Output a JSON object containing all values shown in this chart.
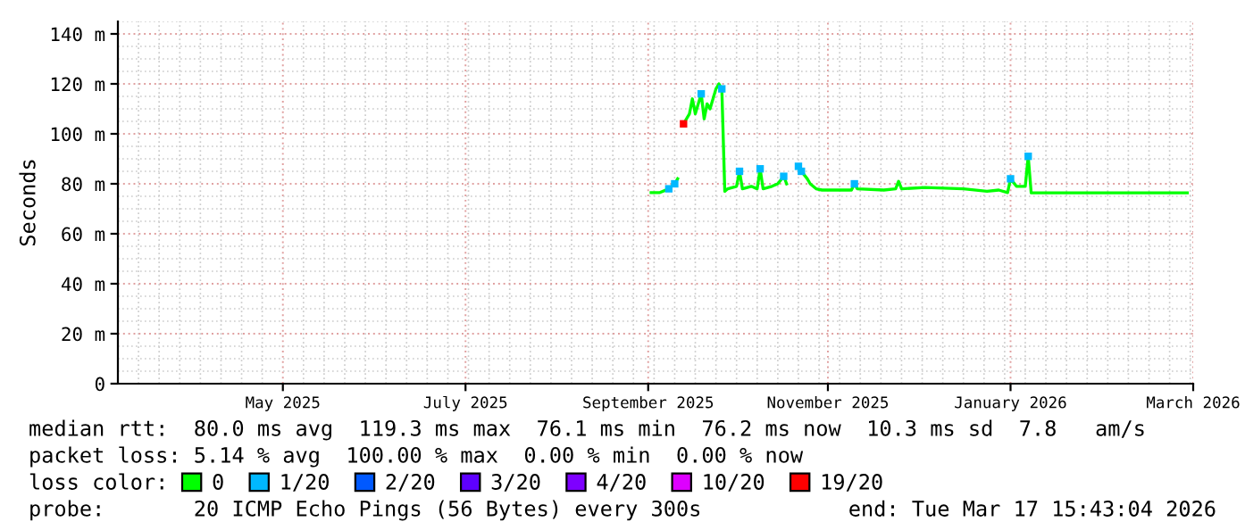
{
  "chart_data": {
    "type": "line",
    "ylabel": "Seconds",
    "legend_title": "loss color:",
    "legend": "bottom",
    "grid": true,
    "x": [
      "2025-09-14",
      "2025-09-17",
      "2025-09-20",
      "2025-09-22",
      "2025-09-23",
      "2025-09-24",
      "2025-09-25",
      "2025-09-27",
      "2025-09-28",
      "2025-09-29",
      "2025-10-01",
      "2025-10-02",
      "2025-10-03",
      "2025-10-04",
      "2025-10-06",
      "2025-10-07",
      "2025-10-08",
      "2025-10-09",
      "2025-10-10",
      "2025-10-13",
      "2025-10-14",
      "2025-10-15",
      "2025-10-18",
      "2025-10-20",
      "2025-10-21",
      "2025-10-22",
      "2025-10-25",
      "2025-10-27",
      "2025-10-29",
      "2025-10-30",
      "2025-11-01",
      "2025-11-03",
      "2025-11-04",
      "2025-11-06",
      "2025-11-07",
      "2025-11-09",
      "2025-11-11",
      "2025-11-17",
      "2025-11-21",
      "2025-11-22",
      "2025-11-23",
      "2025-12-02",
      "2025-12-06",
      "2025-12-07",
      "2025-12-08",
      "2025-12-16",
      "2025-12-29",
      "2026-01-06",
      "2026-01-10",
      "2026-01-13",
      "2026-01-14",
      "2026-01-16",
      "2026-01-19",
      "2026-01-20",
      "2026-01-21",
      "2026-02-04",
      "2026-02-22",
      "2026-03-15"
    ],
    "series": [
      {
        "name": "0",
        "color": "#00ff00",
        "values": [
          76.5,
          76.5,
          78,
          80,
          82,
          null,
          104,
          108,
          114,
          108,
          116,
          106,
          112,
          110,
          118,
          120,
          118,
          77,
          78,
          79,
          85,
          78,
          79,
          78,
          86,
          78,
          79,
          80,
          83,
          80,
          null,
          87,
          85,
          82,
          80,
          78,
          77.5,
          77.5,
          77.5,
          80,
          78,
          77.5,
          78,
          81,
          78,
          78.5,
          78,
          77,
          77.5,
          76.5,
          82,
          79,
          79,
          91,
          76.4,
          76.4,
          76.4,
          76.4
        ]
      },
      {
        "name": "1/20",
        "color": "#00b8ff",
        "type": "scatter",
        "values": [
          null,
          null,
          78,
          80,
          null,
          null,
          null,
          null,
          null,
          null,
          116,
          null,
          null,
          null,
          null,
          null,
          118,
          null,
          null,
          null,
          85,
          null,
          null,
          null,
          86,
          null,
          null,
          null,
          83,
          null,
          null,
          87,
          85,
          null,
          null,
          null,
          null,
          null,
          null,
          80,
          null,
          null,
          null,
          null,
          null,
          null,
          null,
          null,
          null,
          null,
          82,
          null,
          null,
          91,
          null,
          null,
          null,
          null
        ]
      },
      {
        "name": "2/20",
        "color": "#0059ff",
        "type": "scatter",
        "values": [
          null,
          null,
          null,
          null,
          null,
          null,
          null,
          null,
          null,
          null,
          null,
          null,
          null,
          null,
          null,
          null,
          null,
          null,
          null,
          null,
          null,
          null,
          null,
          null,
          null,
          null,
          null,
          null,
          null,
          null,
          null,
          null,
          null,
          null,
          null,
          null,
          null,
          null,
          null,
          null,
          null,
          null,
          null,
          null,
          null,
          null,
          null,
          null,
          null,
          null,
          null,
          null,
          null,
          null,
          null,
          null,
          null,
          null
        ]
      },
      {
        "name": "3/20",
        "color": "#5e00ff",
        "type": "scatter",
        "values": [
          null,
          null,
          null,
          null,
          null,
          null,
          null,
          null,
          null,
          null,
          null,
          null,
          null,
          null,
          null,
          null,
          null,
          null,
          null,
          null,
          null,
          null,
          null,
          null,
          null,
          null,
          null,
          null,
          null,
          null,
          null,
          null,
          null,
          null,
          null,
          null,
          null,
          null,
          null,
          null,
          null,
          null,
          null,
          null,
          null,
          null,
          null,
          null,
          null,
          null,
          null,
          null,
          null,
          null,
          null,
          null,
          null,
          null
        ]
      },
      {
        "name": "4/20",
        "color": "#7e00ff",
        "type": "scatter",
        "values": [
          null,
          null,
          null,
          null,
          null,
          null,
          null,
          null,
          null,
          null,
          null,
          null,
          null,
          null,
          null,
          null,
          null,
          null,
          null,
          null,
          null,
          null,
          null,
          null,
          null,
          null,
          null,
          null,
          null,
          null,
          null,
          null,
          null,
          null,
          null,
          null,
          null,
          null,
          null,
          null,
          null,
          null,
          null,
          null,
          null,
          null,
          null,
          null,
          null,
          null,
          null,
          null,
          null,
          null,
          null,
          null,
          null,
          null
        ]
      },
      {
        "name": "10/20",
        "color": "#dd00ff",
        "type": "scatter",
        "values": [
          null,
          null,
          null,
          null,
          null,
          null,
          null,
          null,
          null,
          null,
          null,
          null,
          null,
          null,
          null,
          null,
          null,
          null,
          null,
          null,
          null,
          null,
          null,
          null,
          null,
          null,
          null,
          null,
          null,
          null,
          null,
          null,
          null,
          null,
          null,
          null,
          null,
          null,
          null,
          null,
          null,
          null,
          null,
          null,
          null,
          null,
          null,
          null,
          null,
          null,
          null,
          null,
          null,
          null,
          null,
          null,
          null,
          null
        ]
      },
      {
        "name": "19/20",
        "color": "#ff0000",
        "type": "scatter",
        "values": [
          null,
          null,
          null,
          null,
          null,
          null,
          104,
          null,
          null,
          null,
          null,
          null,
          null,
          null,
          null,
          null,
          null,
          null,
          null,
          null,
          null,
          null,
          null,
          null,
          null,
          null,
          null,
          null,
          null,
          null,
          null,
          null,
          null,
          null,
          null,
          null,
          null,
          null,
          null,
          null,
          null,
          null,
          null,
          null,
          null,
          null,
          null,
          null,
          null,
          null,
          null,
          null,
          null,
          null,
          null,
          null,
          null,
          null
        ]
      }
    ],
    "xlim": [
      "2025-03-17",
      "2026-03-17"
    ],
    "xticks": [
      {
        "value": "2025-05-12",
        "label": "May 2025"
      },
      {
        "value": "2025-07-13",
        "label": "July 2025"
      },
      {
        "value": "2025-09-13",
        "label": "September 2025"
      },
      {
        "value": "2025-11-13",
        "label": "November 2025"
      },
      {
        "value": "2026-01-14",
        "label": "January 2026"
      },
      {
        "value": "2026-03-17",
        "label": "March 2026"
      }
    ],
    "ylim": [
      0,
      145
    ],
    "yticks": [
      0,
      {
        "value": 20,
        "label": "20 m"
      },
      {
        "value": 40,
        "label": "40 m"
      },
      {
        "value": 60,
        "label": "60 m"
      },
      {
        "value": 80,
        "label": "80 m"
      },
      {
        "value": 100,
        "label": "100 m"
      },
      {
        "value": 120,
        "label": "120 m"
      },
      {
        "value": 140,
        "label": "140 m"
      }
    ],
    "annotations": [
      "median rtt:  80.0 ms avg  119.3 ms max  76.1 ms min  76.2 ms now  10.3 ms sd  7.8   am/s",
      "packet loss: 5.14 % avg  100.00 % max  0.00 % min  0.00 % now",
      "probe:       20 ICMP Echo Pings (56 Bytes) every 300s",
      "end: Tue Mar 17 15:43:04 2026"
    ]
  }
}
